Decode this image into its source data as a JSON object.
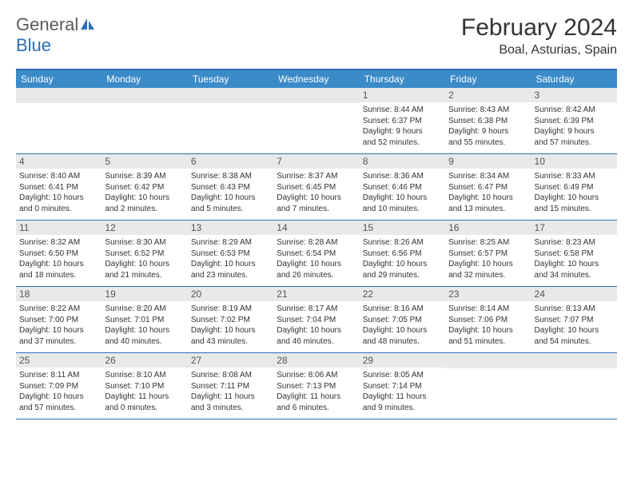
{
  "logo": {
    "general": "General",
    "blue": "Blue"
  },
  "title": "February 2024",
  "location": "Boal, Asturias, Spain",
  "colors": {
    "header_bar": "#3b8bc9",
    "header_border": "#2a6fb5",
    "daynum_bg": "#e9e9e9",
    "text": "#333333",
    "logo_gray": "#5a5a5a",
    "logo_blue": "#2a6fb5"
  },
  "day_headers": [
    "Sunday",
    "Monday",
    "Tuesday",
    "Wednesday",
    "Thursday",
    "Friday",
    "Saturday"
  ],
  "weeks": [
    [
      {
        "empty": true
      },
      {
        "empty": true
      },
      {
        "empty": true
      },
      {
        "empty": true
      },
      {
        "num": "1",
        "sunrise": "Sunrise: 8:44 AM",
        "sunset": "Sunset: 6:37 PM",
        "daylight1": "Daylight: 9 hours",
        "daylight2": "and 52 minutes."
      },
      {
        "num": "2",
        "sunrise": "Sunrise: 8:43 AM",
        "sunset": "Sunset: 6:38 PM",
        "daylight1": "Daylight: 9 hours",
        "daylight2": "and 55 minutes."
      },
      {
        "num": "3",
        "sunrise": "Sunrise: 8:42 AM",
        "sunset": "Sunset: 6:39 PM",
        "daylight1": "Daylight: 9 hours",
        "daylight2": "and 57 minutes."
      }
    ],
    [
      {
        "num": "4",
        "sunrise": "Sunrise: 8:40 AM",
        "sunset": "Sunset: 6:41 PM",
        "daylight1": "Daylight: 10 hours",
        "daylight2": "and 0 minutes."
      },
      {
        "num": "5",
        "sunrise": "Sunrise: 8:39 AM",
        "sunset": "Sunset: 6:42 PM",
        "daylight1": "Daylight: 10 hours",
        "daylight2": "and 2 minutes."
      },
      {
        "num": "6",
        "sunrise": "Sunrise: 8:38 AM",
        "sunset": "Sunset: 6:43 PM",
        "daylight1": "Daylight: 10 hours",
        "daylight2": "and 5 minutes."
      },
      {
        "num": "7",
        "sunrise": "Sunrise: 8:37 AM",
        "sunset": "Sunset: 6:45 PM",
        "daylight1": "Daylight: 10 hours",
        "daylight2": "and 7 minutes."
      },
      {
        "num": "8",
        "sunrise": "Sunrise: 8:36 AM",
        "sunset": "Sunset: 6:46 PM",
        "daylight1": "Daylight: 10 hours",
        "daylight2": "and 10 minutes."
      },
      {
        "num": "9",
        "sunrise": "Sunrise: 8:34 AM",
        "sunset": "Sunset: 6:47 PM",
        "daylight1": "Daylight: 10 hours",
        "daylight2": "and 13 minutes."
      },
      {
        "num": "10",
        "sunrise": "Sunrise: 8:33 AM",
        "sunset": "Sunset: 6:49 PM",
        "daylight1": "Daylight: 10 hours",
        "daylight2": "and 15 minutes."
      }
    ],
    [
      {
        "num": "11",
        "sunrise": "Sunrise: 8:32 AM",
        "sunset": "Sunset: 6:50 PM",
        "daylight1": "Daylight: 10 hours",
        "daylight2": "and 18 minutes."
      },
      {
        "num": "12",
        "sunrise": "Sunrise: 8:30 AM",
        "sunset": "Sunset: 6:52 PM",
        "daylight1": "Daylight: 10 hours",
        "daylight2": "and 21 minutes."
      },
      {
        "num": "13",
        "sunrise": "Sunrise: 8:29 AM",
        "sunset": "Sunset: 6:53 PM",
        "daylight1": "Daylight: 10 hours",
        "daylight2": "and 23 minutes."
      },
      {
        "num": "14",
        "sunrise": "Sunrise: 8:28 AM",
        "sunset": "Sunset: 6:54 PM",
        "daylight1": "Daylight: 10 hours",
        "daylight2": "and 26 minutes."
      },
      {
        "num": "15",
        "sunrise": "Sunrise: 8:26 AM",
        "sunset": "Sunset: 6:56 PM",
        "daylight1": "Daylight: 10 hours",
        "daylight2": "and 29 minutes."
      },
      {
        "num": "16",
        "sunrise": "Sunrise: 8:25 AM",
        "sunset": "Sunset: 6:57 PM",
        "daylight1": "Daylight: 10 hours",
        "daylight2": "and 32 minutes."
      },
      {
        "num": "17",
        "sunrise": "Sunrise: 8:23 AM",
        "sunset": "Sunset: 6:58 PM",
        "daylight1": "Daylight: 10 hours",
        "daylight2": "and 34 minutes."
      }
    ],
    [
      {
        "num": "18",
        "sunrise": "Sunrise: 8:22 AM",
        "sunset": "Sunset: 7:00 PM",
        "daylight1": "Daylight: 10 hours",
        "daylight2": "and 37 minutes."
      },
      {
        "num": "19",
        "sunrise": "Sunrise: 8:20 AM",
        "sunset": "Sunset: 7:01 PM",
        "daylight1": "Daylight: 10 hours",
        "daylight2": "and 40 minutes."
      },
      {
        "num": "20",
        "sunrise": "Sunrise: 8:19 AM",
        "sunset": "Sunset: 7:02 PM",
        "daylight1": "Daylight: 10 hours",
        "daylight2": "and 43 minutes."
      },
      {
        "num": "21",
        "sunrise": "Sunrise: 8:17 AM",
        "sunset": "Sunset: 7:04 PM",
        "daylight1": "Daylight: 10 hours",
        "daylight2": "and 46 minutes."
      },
      {
        "num": "22",
        "sunrise": "Sunrise: 8:16 AM",
        "sunset": "Sunset: 7:05 PM",
        "daylight1": "Daylight: 10 hours",
        "daylight2": "and 48 minutes."
      },
      {
        "num": "23",
        "sunrise": "Sunrise: 8:14 AM",
        "sunset": "Sunset: 7:06 PM",
        "daylight1": "Daylight: 10 hours",
        "daylight2": "and 51 minutes."
      },
      {
        "num": "24",
        "sunrise": "Sunrise: 8:13 AM",
        "sunset": "Sunset: 7:07 PM",
        "daylight1": "Daylight: 10 hours",
        "daylight2": "and 54 minutes."
      }
    ],
    [
      {
        "num": "25",
        "sunrise": "Sunrise: 8:11 AM",
        "sunset": "Sunset: 7:09 PM",
        "daylight1": "Daylight: 10 hours",
        "daylight2": "and 57 minutes."
      },
      {
        "num": "26",
        "sunrise": "Sunrise: 8:10 AM",
        "sunset": "Sunset: 7:10 PM",
        "daylight1": "Daylight: 11 hours",
        "daylight2": "and 0 minutes."
      },
      {
        "num": "27",
        "sunrise": "Sunrise: 8:08 AM",
        "sunset": "Sunset: 7:11 PM",
        "daylight1": "Daylight: 11 hours",
        "daylight2": "and 3 minutes."
      },
      {
        "num": "28",
        "sunrise": "Sunrise: 8:06 AM",
        "sunset": "Sunset: 7:13 PM",
        "daylight1": "Daylight: 11 hours",
        "daylight2": "and 6 minutes."
      },
      {
        "num": "29",
        "sunrise": "Sunrise: 8:05 AM",
        "sunset": "Sunset: 7:14 PM",
        "daylight1": "Daylight: 11 hours",
        "daylight2": "and 9 minutes."
      },
      {
        "empty": true
      },
      {
        "empty": true
      }
    ]
  ]
}
